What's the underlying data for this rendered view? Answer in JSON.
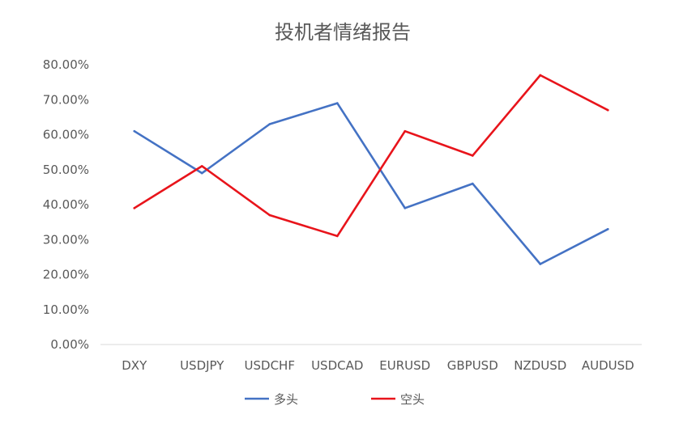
{
  "chart_data": {
    "type": "line",
    "title": "投机者情绪报告",
    "categories": [
      "DXY",
      "USDJPY",
      "USDCHF",
      "USDCAD",
      "EURUSD",
      "GBPUSD",
      "NZDUSD",
      "AUDUSD"
    ],
    "series": [
      {
        "name": "多头",
        "color": "#4472C4",
        "values": [
          61,
          49,
          63,
          69,
          39,
          46,
          23,
          33
        ]
      },
      {
        "name": "空头",
        "color": "#E8141B",
        "values": [
          39,
          51,
          37,
          31,
          61,
          54,
          77,
          67
        ]
      }
    ],
    "ylim": [
      0,
      80
    ],
    "yticks": [
      "0.00%",
      "10.00%",
      "20.00%",
      "30.00%",
      "40.00%",
      "50.00%",
      "60.00%",
      "70.00%",
      "80.00%"
    ],
    "grid": false,
    "legend_position": "bottom"
  }
}
